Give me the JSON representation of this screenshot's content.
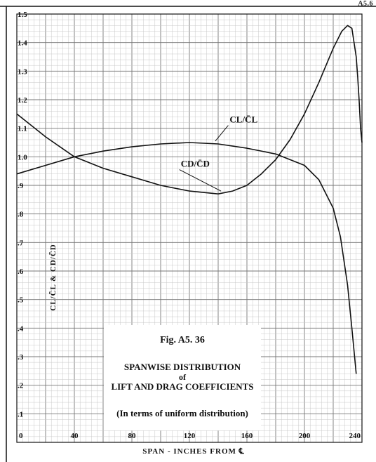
{
  "page": {
    "code": "A5.6"
  },
  "caption": {
    "figure": "Fig. A5. 36",
    "title_line1": "SPANWISE DISTRIBUTION",
    "title_of": "of",
    "title_line2": "LIFT AND DRAG COEFFICIENTS",
    "note": "(In terms of uniform distribution)"
  },
  "colors": {
    "grid_minor": "#c8c8c8",
    "grid_major": "#777777",
    "ink": "#111111"
  },
  "chart_data": {
    "type": "line",
    "title": "SPANWISE DISTRIBUTION of LIFT AND DRAG COEFFICIENTS",
    "xlabel": "SPAN - INCHES FROM ℄",
    "ylabel": "CL/C̄L & CD/C̄D",
    "xlim": [
      0,
      240
    ],
    "ylim": [
      0,
      1.5
    ],
    "grid": true,
    "x_ticks": [
      0,
      40,
      80,
      120,
      160,
      200,
      240
    ],
    "y_ticks": [
      0.1,
      0.2,
      0.3,
      0.4,
      0.5,
      0.6,
      0.7,
      0.8,
      0.9,
      1.0,
      1.1,
      1.2,
      1.3,
      1.4,
      1.5
    ],
    "y_tick_labels": [
      ".1",
      ".2",
      ".3",
      ".4",
      ".5",
      ".6",
      ".7",
      ".8",
      ".9",
      "1.0",
      "1.1",
      "1.2",
      "1.3",
      "1.4",
      "1.5"
    ],
    "series": [
      {
        "name": "CL/C̄L",
        "label": "CL/C̄L",
        "x": [
          0,
          20,
          40,
          60,
          80,
          100,
          120,
          140,
          160,
          180,
          200,
          210,
          220,
          225,
          230,
          233,
          236
        ],
        "y": [
          0.94,
          0.97,
          1.0,
          1.02,
          1.035,
          1.045,
          1.05,
          1.045,
          1.03,
          1.01,
          0.97,
          0.92,
          0.82,
          0.72,
          0.55,
          0.4,
          0.24
        ]
      },
      {
        "name": "CD/C̄D",
        "label": "CD/C̄D",
        "x": [
          0,
          20,
          40,
          60,
          80,
          100,
          120,
          140,
          150,
          160,
          170,
          180,
          190,
          200,
          210,
          220,
          226,
          230,
          233,
          236,
          237,
          238,
          239,
          240
        ],
        "y": [
          1.15,
          1.07,
          1.0,
          0.96,
          0.93,
          0.9,
          0.88,
          0.87,
          0.88,
          0.9,
          0.94,
          0.99,
          1.06,
          1.15,
          1.26,
          1.38,
          1.44,
          1.46,
          1.45,
          1.35,
          1.28,
          1.2,
          1.1,
          1.05
        ]
      }
    ]
  }
}
